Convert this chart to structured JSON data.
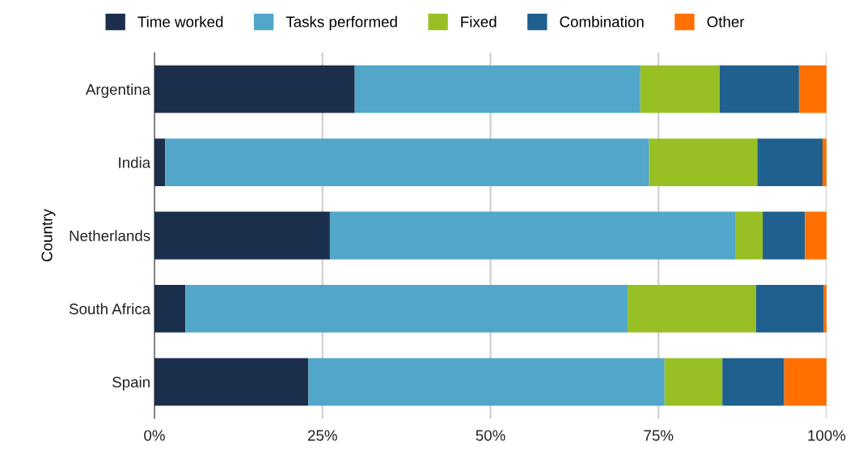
{
  "chart_data": {
    "type": "bar",
    "orientation": "horizontal",
    "stacked": true,
    "ylabel": "Country",
    "categories": [
      "Argentina",
      "India",
      "Netherlands",
      "South Africa",
      "Spain"
    ],
    "series": [
      {
        "name": "Time worked",
        "color": "#1b2f4c",
        "values": [
          29.8,
          1.6,
          26.1,
          4.6,
          22.9
        ]
      },
      {
        "name": "Tasks performed",
        "color": "#51a6c9",
        "values": [
          42.5,
          72.0,
          60.4,
          65.8,
          53.0
        ]
      },
      {
        "name": "Fixed",
        "color": "#98c024",
        "values": [
          11.8,
          16.1,
          4.0,
          19.1,
          8.6
        ]
      },
      {
        "name": "Combination",
        "color": "#1f608f",
        "values": [
          11.8,
          9.7,
          6.3,
          10.1,
          9.2
        ]
      },
      {
        "name": "Other",
        "color": "#ff7000",
        "values": [
          4.1,
          0.6,
          3.2,
          0.4,
          6.3
        ]
      }
    ],
    "xlim": [
      0,
      100
    ],
    "xticks": [
      {
        "value": 0,
        "label": "0%"
      },
      {
        "value": 25,
        "label": "25%"
      },
      {
        "value": 50,
        "label": "50%"
      },
      {
        "value": 75,
        "label": "75%"
      },
      {
        "value": 100,
        "label": "100%"
      }
    ],
    "grid": "x",
    "legend": "top"
  }
}
